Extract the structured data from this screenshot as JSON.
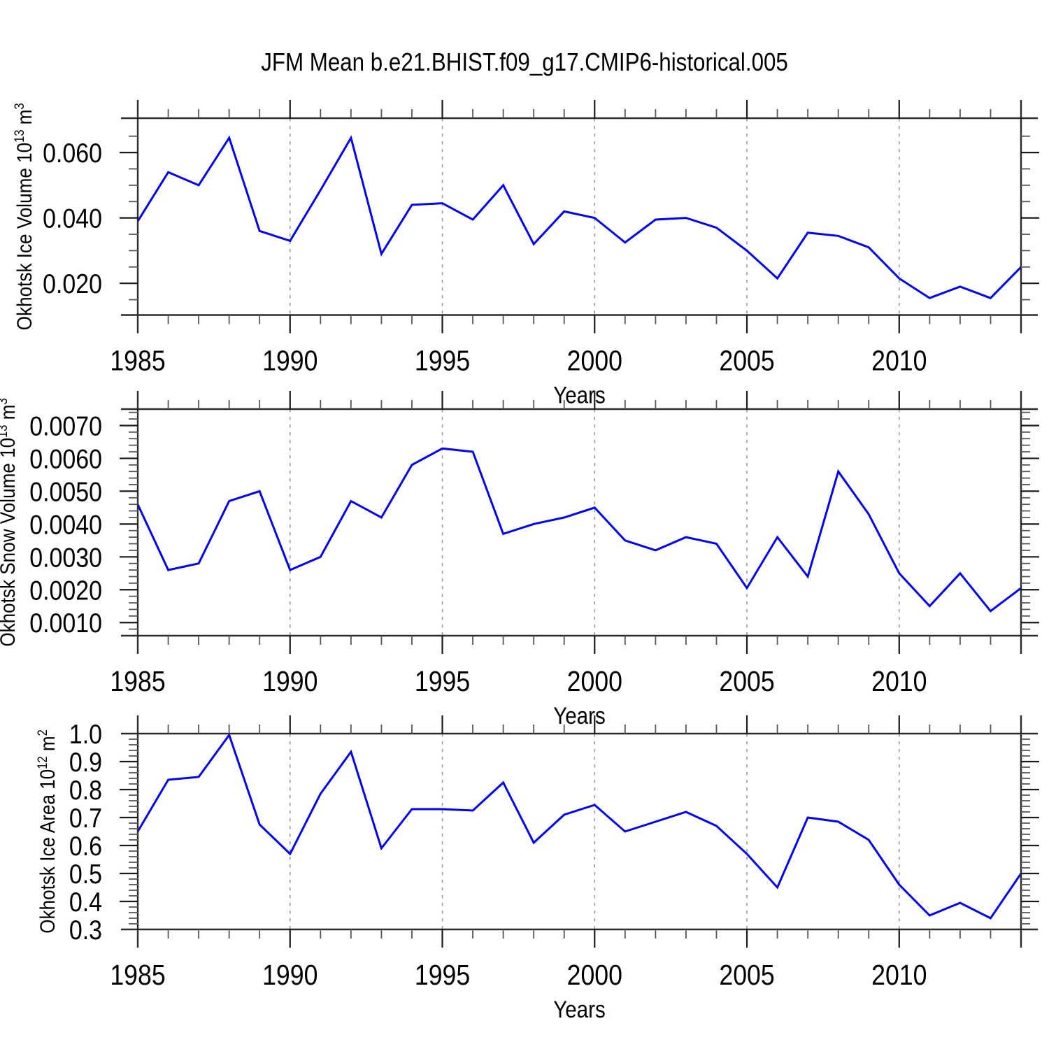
{
  "title": "JFM Mean b.e21.BHIST.f09_g17.CMIP6-historical.005",
  "xlabel": "Years",
  "colors": {
    "line": "#0202f0",
    "grid": "#9a9a9a",
    "frame": "#2b2b2b",
    "major_tick": "#1a1a1a",
    "minor_tick": "#555555",
    "text": "#000000",
    "background": "#ffffff"
  },
  "x_axis": {
    "label": "Years",
    "tick_label_years": [
      1985,
      1990,
      1995,
      2000,
      2005,
      2010
    ],
    "tick_labels": [
      "1985",
      "1990",
      "1995",
      "2000",
      "2005",
      "2010"
    ],
    "major_tick_years": [
      1990,
      1995,
      2000,
      2005,
      2010
    ],
    "grid_years": [
      1990,
      1995,
      2000,
      2005,
      2010
    ],
    "range": [
      1985,
      2014
    ]
  },
  "chart_data": [
    {
      "type": "line",
      "name": "okhotsk-ice-volume",
      "ylabel": "Okhotsk Ice Volume 10¹³ m³",
      "ylabel_parts": [
        {
          "text": "Okhotsk Ice Volume 10"
        },
        {
          "text": "13",
          "sup": true
        },
        {
          "text": " m"
        },
        {
          "text": "3",
          "sup": true
        }
      ],
      "xlabel": "Years",
      "x": [
        1985,
        1986,
        1987,
        1988,
        1989,
        1990,
        1991,
        1992,
        1993,
        1994,
        1995,
        1996,
        1997,
        1998,
        1999,
        2000,
        2001,
        2002,
        2003,
        2004,
        2005,
        2006,
        2007,
        2008,
        2009,
        2010,
        2011,
        2012,
        2013,
        2014
      ],
      "values": [
        0.039,
        0.054,
        0.05,
        0.0645,
        0.036,
        0.033,
        0.0485,
        0.0645,
        0.029,
        0.044,
        0.0445,
        0.0395,
        0.05,
        0.032,
        0.042,
        0.04,
        0.0325,
        0.0395,
        0.04,
        0.037,
        0.03,
        0.0215,
        0.0355,
        0.0345,
        0.031,
        0.0215,
        0.0155,
        0.019,
        0.0155,
        0.025
      ],
      "ylim": [
        0.0103,
        0.0705
      ],
      "ytick_values": [
        0.02,
        0.04,
        0.06
      ],
      "ytick_labels": [
        "0.020",
        "0.040",
        "0.060"
      ],
      "y_minor_step": 0.005,
      "grid": "vertical-dashed"
    },
    {
      "type": "line",
      "name": "okhotsk-snow-volume",
      "ylabel": "Okhotsk Snow Volume 10¹³ m³",
      "ylabel_parts": [
        {
          "text": "Okhotsk Snow Volume 10"
        },
        {
          "text": "13",
          "sup": true
        },
        {
          "text": " m"
        },
        {
          "text": "3",
          "sup": true
        }
      ],
      "xlabel": "Years",
      "x": [
        1985,
        1986,
        1987,
        1988,
        1989,
        1990,
        1991,
        1992,
        1993,
        1994,
        1995,
        1996,
        1997,
        1998,
        1999,
        2000,
        2001,
        2002,
        2003,
        2004,
        2005,
        2006,
        2007,
        2008,
        2009,
        2010,
        2011,
        2012,
        2013,
        2014
      ],
      "values": [
        0.0046,
        0.0026,
        0.0028,
        0.0047,
        0.005,
        0.0026,
        0.003,
        0.0047,
        0.0042,
        0.0058,
        0.0063,
        0.0062,
        0.0037,
        0.004,
        0.0042,
        0.0045,
        0.0035,
        0.0032,
        0.0036,
        0.0034,
        0.00205,
        0.0036,
        0.0024,
        0.0056,
        0.0043,
        0.0025,
        0.0015,
        0.0025,
        0.00135,
        0.00205
      ],
      "ylim": [
        0.0006,
        0.0075
      ],
      "ytick_values": [
        0.001,
        0.002,
        0.003,
        0.004,
        0.005,
        0.006,
        0.007
      ],
      "ytick_labels": [
        "0.0010",
        "0.0020",
        "0.0030",
        "0.0040",
        "0.0050",
        "0.0060",
        "0.0070"
      ],
      "y_minor_step": 0.0002,
      "grid": "vertical-dashed"
    },
    {
      "type": "line",
      "name": "okhotsk-ice-area",
      "ylabel": "Okhotsk Ice Area 10¹² m²",
      "ylabel_parts": [
        {
          "text": "Okhotsk Ice Area 10"
        },
        {
          "text": "12",
          "sup": true
        },
        {
          "text": " m"
        },
        {
          "text": "2",
          "sup": true
        }
      ],
      "xlabel": "Years",
      "x": [
        1985,
        1986,
        1987,
        1988,
        1989,
        1990,
        1991,
        1992,
        1993,
        1994,
        1995,
        1996,
        1997,
        1998,
        1999,
        2000,
        2001,
        2002,
        2003,
        2004,
        2005,
        2006,
        2007,
        2008,
        2009,
        2010,
        2011,
        2012,
        2013,
        2014
      ],
      "values": [
        0.65,
        0.835,
        0.845,
        0.995,
        0.675,
        0.57,
        0.785,
        0.935,
        0.59,
        0.73,
        0.73,
        0.725,
        0.825,
        0.61,
        0.71,
        0.745,
        0.65,
        0.685,
        0.72,
        0.67,
        0.57,
        0.45,
        0.7,
        0.685,
        0.62,
        0.46,
        0.35,
        0.395,
        0.34,
        0.5
      ],
      "ylim": [
        0.3,
        1.0
      ],
      "ytick_values": [
        0.3,
        0.4,
        0.5,
        0.6,
        0.7,
        0.8,
        0.9,
        1.0
      ],
      "ytick_labels": [
        "0.3",
        "0.4",
        "0.5",
        "0.6",
        "0.7",
        "0.8",
        "0.9",
        "1.0"
      ],
      "y_minor_step": 0.02,
      "grid": "vertical-dashed"
    }
  ]
}
